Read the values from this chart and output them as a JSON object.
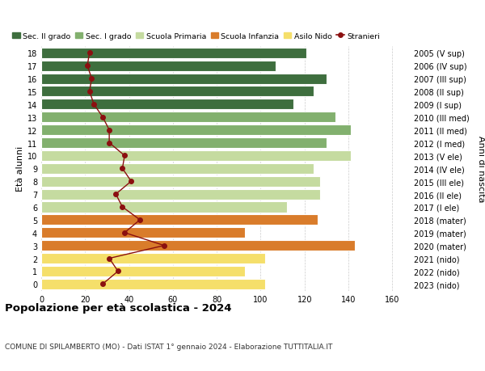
{
  "ages": [
    0,
    1,
    2,
    3,
    4,
    5,
    6,
    7,
    8,
    9,
    10,
    11,
    12,
    13,
    14,
    15,
    16,
    17,
    18
  ],
  "right_labels": [
    "2023 (nido)",
    "2022 (nido)",
    "2021 (nido)",
    "2020 (mater)",
    "2019 (mater)",
    "2018 (mater)",
    "2017 (I ele)",
    "2016 (II ele)",
    "2015 (III ele)",
    "2014 (IV ele)",
    "2013 (V ele)",
    "2012 (I med)",
    "2011 (II med)",
    "2010 (III med)",
    "2009 (I sup)",
    "2008 (II sup)",
    "2007 (III sup)",
    "2006 (IV sup)",
    "2005 (V sup)"
  ],
  "bar_values": [
    102,
    93,
    102,
    143,
    93,
    126,
    112,
    127,
    127,
    124,
    141,
    130,
    141,
    134,
    115,
    124,
    130,
    107,
    121
  ],
  "bar_colors": [
    "#f5df6a",
    "#f5df6a",
    "#f5df6a",
    "#d97c2b",
    "#d97c2b",
    "#d97c2b",
    "#c5dba0",
    "#c5dba0",
    "#c5dba0",
    "#c5dba0",
    "#c5dba0",
    "#82b06e",
    "#82b06e",
    "#82b06e",
    "#3e6e3e",
    "#3e6e3e",
    "#3e6e3e",
    "#3e6e3e",
    "#3e6e3e"
  ],
  "stranieri_values": [
    28,
    35,
    31,
    56,
    38,
    45,
    37,
    34,
    41,
    37,
    38,
    31,
    31,
    28,
    24,
    22,
    23,
    21,
    22
  ],
  "xlim": [
    0,
    168
  ],
  "xticks": [
    0,
    20,
    40,
    60,
    80,
    100,
    120,
    140,
    160
  ],
  "ylabel_left": "Età alunni",
  "ylabel_right": "Anni di nascita",
  "title": "Popolazione per età scolastica - 2024",
  "subtitle": "COMUNE DI SPILAMBERTO (MO) - Dati ISTAT 1° gennaio 2024 - Elaborazione TUTTITALIA.IT",
  "legend_entries": [
    {
      "label": "Sec. II grado",
      "color": "#3e6e3e",
      "type": "patch"
    },
    {
      "label": "Sec. I grado",
      "color": "#82b06e",
      "type": "patch"
    },
    {
      "label": "Scuola Primaria",
      "color": "#c5dba0",
      "type": "patch"
    },
    {
      "label": "Scuola Infanzia",
      "color": "#d97c2b",
      "type": "patch"
    },
    {
      "label": "Asilo Nido",
      "color": "#f5df6a",
      "type": "patch"
    },
    {
      "label": "Stranieri",
      "color": "#8b1010",
      "type": "line"
    }
  ],
  "background_color": "#ffffff",
  "bar_height": 0.82,
  "grid_color": "#cccccc",
  "stranieri_color": "#8b1010"
}
